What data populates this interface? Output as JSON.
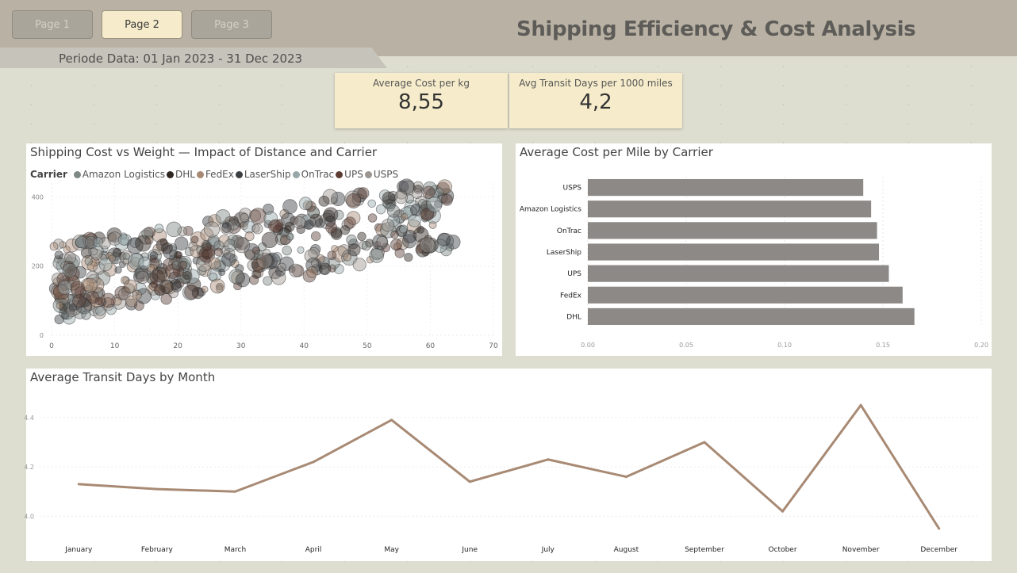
{
  "nav": {
    "pages": [
      {
        "label": "Page 1",
        "active": false
      },
      {
        "label": "Page 2",
        "active": true
      },
      {
        "label": "Page 3",
        "active": false
      }
    ]
  },
  "header": {
    "title": "Shipping Efficiency & Cost Analysis",
    "period": "Periode Data: 01 Jan 2023 - 31 Dec 2023"
  },
  "kpis": [
    {
      "label": "Average Cost per kg",
      "value": "8,55"
    },
    {
      "label": "Avg Transit Days per 1000 miles",
      "value": "4,2"
    }
  ],
  "colors": {
    "Amazon Logistics": "#7d8784",
    "DHL": "#2f2621",
    "FedEx": "#a88a74",
    "LaserShip": "#3c3f42",
    "OnTrac": "#97a6a8",
    "UPS": "#5c3c32",
    "USPS": "#9b9591",
    "bar": "#8c8986",
    "line": "#a88a74"
  },
  "chart_data": [
    {
      "type": "scatter",
      "title": "Shipping Cost vs Weight — Impact of Distance and Carrier",
      "legend_title": "Carrier",
      "legend_position": "top-left",
      "series_names": [
        "Amazon Logistics",
        "DHL",
        "FedEx",
        "LaserShip",
        "OnTrac",
        "UPS",
        "USPS"
      ],
      "xlim": [
        0,
        70
      ],
      "ylim": [
        0,
        440
      ],
      "x_ticks": [
        "0",
        "10",
        "20",
        "30",
        "40",
        "50",
        "60",
        "70"
      ],
      "y_ticks": [
        "0",
        "200",
        "400"
      ],
      "grid": true,
      "points_note": "dense cloud of bubbles; weight 0-66, cost 20-460, bubble size encodes distance"
    },
    {
      "type": "bar",
      "orientation": "horizontal",
      "title": "Average Cost per Mile by Carrier",
      "categories": [
        "USPS",
        "Amazon Logistics",
        "OnTrac",
        "LaserShip",
        "UPS",
        "FedEx",
        "DHL"
      ],
      "values": [
        0.14,
        0.144,
        0.147,
        0.148,
        0.153,
        0.16,
        0.166
      ],
      "xlim": [
        0,
        0.2
      ],
      "x_ticks": [
        "0.00",
        "0.05",
        "0.10",
        "0.15",
        "0.20"
      ],
      "grid": true
    },
    {
      "type": "line",
      "title": "Average Transit Days by Month",
      "categories": [
        "January",
        "February",
        "March",
        "April",
        "May",
        "June",
        "July",
        "August",
        "September",
        "October",
        "November",
        "December"
      ],
      "values": [
        4.13,
        4.11,
        4.1,
        4.22,
        4.39,
        4.14,
        4.23,
        4.16,
        4.3,
        4.02,
        4.45,
        3.95
      ],
      "ylim": [
        3.95,
        4.47
      ],
      "y_ticks": [
        "4.0",
        "4.2",
        "4.4"
      ],
      "grid": true
    }
  ]
}
